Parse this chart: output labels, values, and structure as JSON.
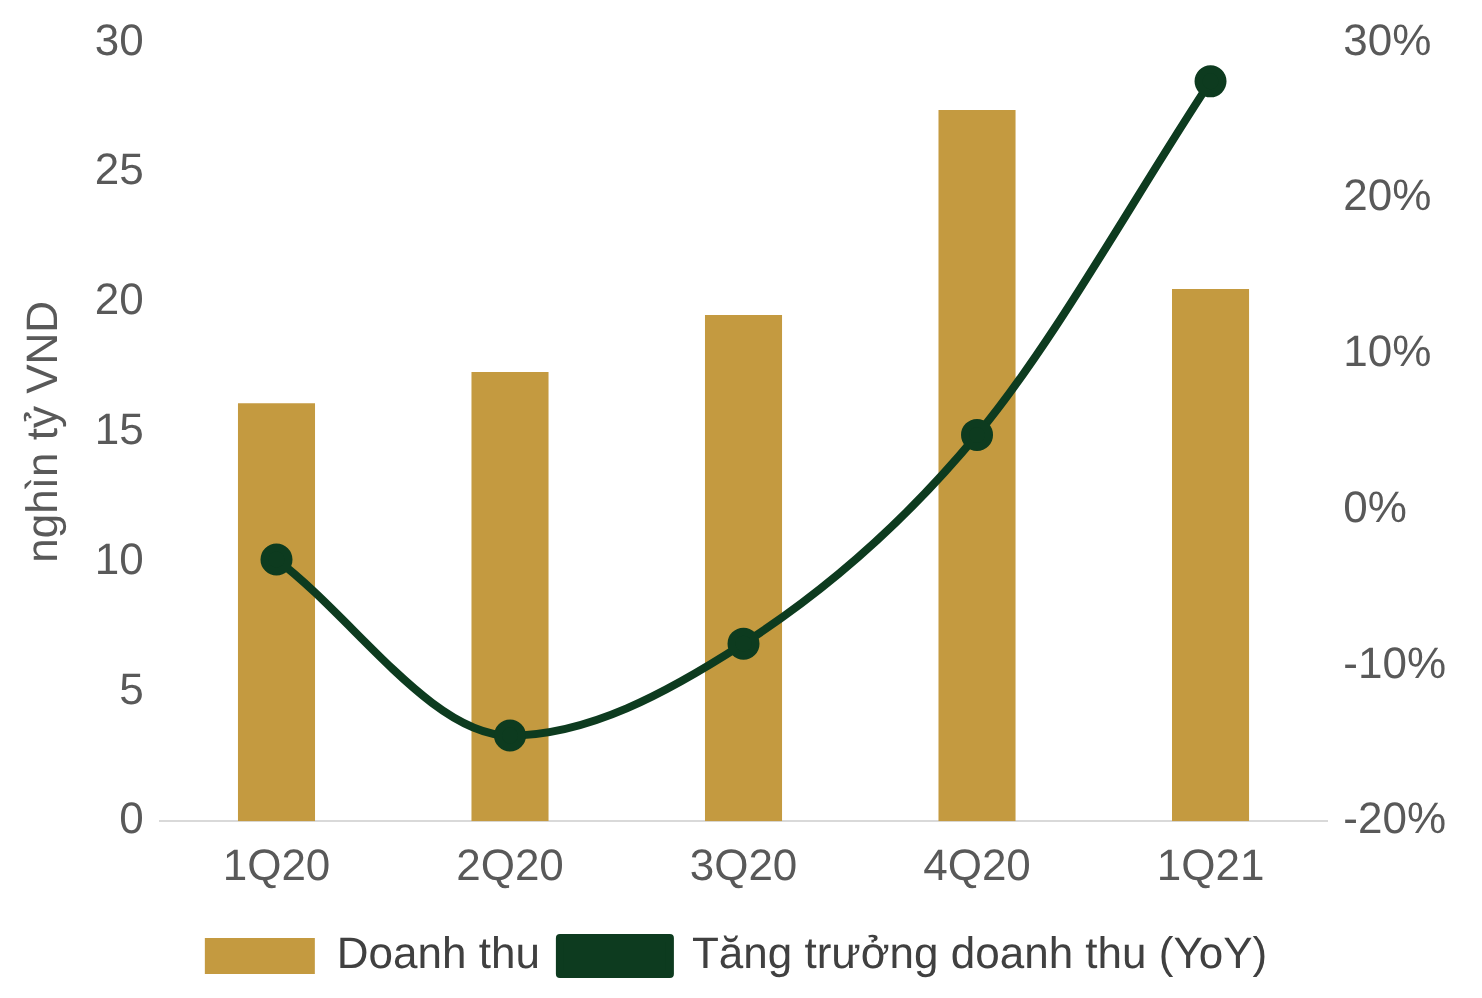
{
  "chart_data": {
    "type": "bar",
    "ylabel": "nghìn tỷ VND",
    "categories": [
      "1Q20",
      "2Q20",
      "3Q20",
      "4Q20",
      "1Q21"
    ],
    "series": [
      {
        "name": "Doanh thu",
        "color": "#c49a40",
        "values": [
          16.1,
          17.3,
          19.5,
          27.4,
          20.5
        ]
      },
      {
        "name": "Tăng trưởng doanh thu (YoY)",
        "type": "line",
        "axis": "y2",
        "color": "#0d3b1f",
        "values": [
          -3.2,
          -14.5,
          -8.6,
          4.8,
          27.5
        ]
      }
    ],
    "ylim": [
      0,
      30
    ],
    "yticks": [
      0,
      5,
      10,
      15,
      20,
      25,
      30
    ],
    "y2lim": [
      -20,
      30
    ],
    "y2ticks": [
      {
        "value": -20,
        "label": "-20%"
      },
      {
        "value": -10,
        "label": "-10%"
      },
      {
        "value": 0,
        "label": "0%"
      },
      {
        "value": 10,
        "label": "10%"
      },
      {
        "value": 20,
        "label": "20%"
      },
      {
        "value": 30,
        "label": "30%"
      }
    ],
    "legend": "bottom",
    "marker": "circle"
  }
}
